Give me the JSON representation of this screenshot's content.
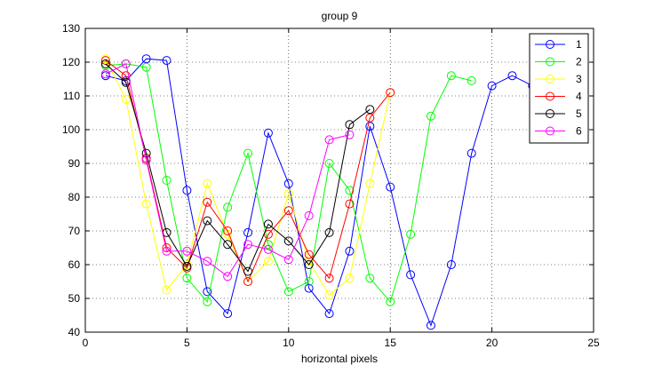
{
  "chart_data": {
    "type": "line",
    "title": "group 9",
    "xlabel": "horizontal pixels",
    "ylabel": "",
    "xlim": [
      0,
      25
    ],
    "ylim": [
      40,
      130
    ],
    "xticks": [
      0,
      5,
      10,
      15,
      20,
      25
    ],
    "yticks": [
      40,
      50,
      60,
      70,
      80,
      90,
      100,
      110,
      120,
      130
    ],
    "grid": true,
    "legend": "top-right",
    "series": [
      {
        "name": "1",
        "color": "#0000ff",
        "x": [
          1,
          2,
          3,
          4,
          5,
          6,
          7,
          8,
          9,
          10,
          11,
          12,
          13,
          14,
          15,
          16,
          17,
          18,
          19,
          20,
          21,
          22
        ],
        "y": [
          116,
          114.5,
          121,
          120.5,
          82,
          52,
          45.5,
          69.5,
          99,
          84,
          53,
          45.5,
          64,
          101,
          83,
          57,
          42,
          60,
          93,
          113,
          116,
          113
        ]
      },
      {
        "name": "2",
        "color": "#00ff00",
        "x": [
          1,
          2,
          3,
          4,
          5,
          6,
          7,
          8,
          9,
          10,
          11,
          12,
          13,
          14,
          15,
          16,
          17,
          18,
          19
        ],
        "y": [
          119,
          119.5,
          118.5,
          85,
          56,
          49,
          77,
          93,
          66,
          52,
          55,
          90,
          82,
          56,
          49,
          69,
          104,
          116,
          114.5
        ]
      },
      {
        "name": "3",
        "color": "#ffff00",
        "x": [
          1,
          2,
          3,
          4,
          5,
          6,
          7,
          8,
          9,
          10,
          11,
          12,
          13,
          14,
          15
        ],
        "y": [
          121,
          109,
          78,
          52.5,
          60,
          84,
          69,
          55,
          61,
          81,
          61,
          51,
          56,
          84,
          111
        ]
      },
      {
        "name": "4",
        "color": "#ff0000",
        "x": [
          1,
          2,
          3,
          4,
          5,
          6,
          7,
          8,
          9,
          10,
          11,
          12,
          13,
          14,
          15
        ],
        "y": [
          120.5,
          116,
          91.5,
          65,
          59,
          78.5,
          70,
          55,
          69,
          76,
          63,
          56,
          78,
          103.5,
          111
        ]
      },
      {
        "name": "5",
        "color": "#000000",
        "x": [
          1,
          2,
          3,
          4,
          5,
          6,
          7,
          8,
          9,
          10,
          11,
          12,
          13,
          14
        ],
        "y": [
          119.5,
          114,
          93,
          69.5,
          59.5,
          73,
          66,
          58,
          72,
          67,
          60,
          69.5,
          101.5,
          106
        ]
      },
      {
        "name": "6",
        "color": "#ff00ff",
        "x": [
          1,
          2,
          3,
          4,
          5,
          6,
          7,
          8,
          9,
          10,
          11,
          12,
          13
        ],
        "y": [
          116.5,
          119.5,
          91,
          64,
          64,
          61,
          56.5,
          66,
          64.5,
          61.5,
          74.5,
          97,
          98.5
        ]
      }
    ]
  }
}
